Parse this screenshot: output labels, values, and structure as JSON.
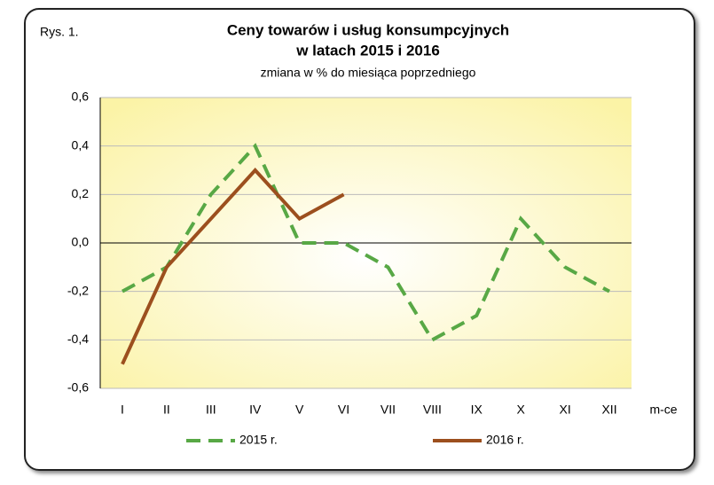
{
  "chart_data": {
    "type": "line",
    "figure_label": "Rys. 1.",
    "title": "Ceny towarów i usług konsumpcyjnych",
    "title_line2": "w latach 2015 i 2016",
    "subtitle": "zmiana w % do miesiąca poprzedniego",
    "x_label": "m-ce",
    "categories": [
      "I",
      "II",
      "III",
      "IV",
      "V",
      "VI",
      "VII",
      "VIII",
      "IX",
      "X",
      "XI",
      "XII"
    ],
    "series": [
      {
        "name": "2015 r.",
        "color": "#58a845",
        "dashed": true,
        "values": [
          -0.2,
          -0.1,
          0.2,
          0.4,
          0.0,
          0.0,
          -0.1,
          -0.4,
          -0.3,
          0.1,
          -0.1,
          -0.2
        ]
      },
      {
        "name": "2016 r.",
        "color": "#9c4f1e",
        "dashed": false,
        "values": [
          -0.5,
          -0.1,
          0.1,
          0.3,
          0.1,
          0.2,
          null,
          null,
          null,
          null,
          null,
          null
        ]
      }
    ],
    "ylim": [
      -0.6,
      0.6
    ],
    "yticks": [
      {
        "value": -0.6,
        "label": "-0,6"
      },
      {
        "value": -0.4,
        "label": "-0,4"
      },
      {
        "value": -0.2,
        "label": "-0,2"
      },
      {
        "value": 0,
        "label": "0,0"
      },
      {
        "value": 0.2,
        "label": "0,2"
      },
      {
        "value": 0.4,
        "label": "0,4"
      },
      {
        "value": 0.6,
        "label": "0,6"
      }
    ],
    "grid": true,
    "legend": "bottom"
  }
}
